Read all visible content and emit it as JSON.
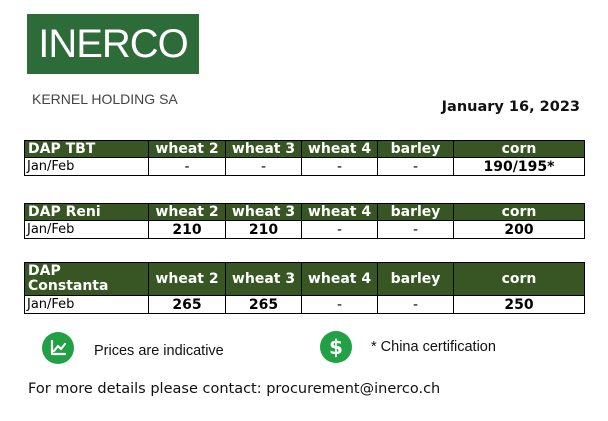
{
  "logo": {
    "text": "INERCO",
    "color": "#2d6b39"
  },
  "company": "KERNEL HOLDING SA",
  "date": "January 16, 2023",
  "header_color": "#375623",
  "columns": [
    "wheat 2",
    "wheat 3",
    "wheat 4",
    "barley",
    "corn"
  ],
  "tables": [
    {
      "port": "DAP TBT",
      "period": "Jan/Feb",
      "values": [
        "-",
        "-",
        "-",
        "-",
        "190/195*"
      ]
    },
    {
      "port": "DAP Reni",
      "period": "Jan/Feb",
      "values": [
        "210",
        "210",
        "-",
        "-",
        "200"
      ]
    },
    {
      "port": "DAP Constanta",
      "period": "Jan/Feb",
      "values": [
        "265",
        "265",
        "-",
        "-",
        "250"
      ]
    }
  ],
  "notes": {
    "indicative": "Prices are indicative",
    "china": "* China certification",
    "chart_icon": "chart-icon",
    "dollar_icon": "dollar-icon",
    "dollar_symbol": "$",
    "icon_color": "#21a045"
  },
  "contact": "For more details please contact: procurement@inerco.ch"
}
